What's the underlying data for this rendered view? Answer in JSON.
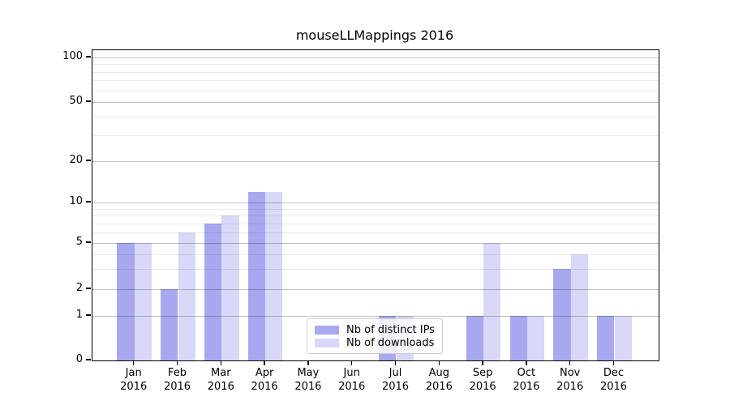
{
  "title": "mouseLLMappings 2016",
  "colors": {
    "distinct_ips": "#a8a8f0",
    "downloads": "#d8d8f8",
    "grid_major": "rgba(0,0,0,0.24)",
    "grid_minor": "rgba(0,0,0,0.09)",
    "axis": "#000000",
    "legend_border": "#cccccc"
  },
  "legend": {
    "items": [
      "Nb of distinct IPs",
      "Nb of downloads"
    ]
  },
  "chart_data": {
    "type": "bar",
    "title": "mouseLLMappings 2016",
    "x_months": [
      "Jan",
      "Feb",
      "Mar",
      "Apr",
      "May",
      "Jun",
      "Jul",
      "Aug",
      "Sep",
      "Oct",
      "Nov",
      "Dec"
    ],
    "x_year": "2016",
    "categories": [
      "Jan 2016",
      "Feb 2016",
      "Mar 2016",
      "Apr 2016",
      "May 2016",
      "Jun 2016",
      "Jul 2016",
      "Aug 2016",
      "Sep 2016",
      "Oct 2016",
      "Nov 2016",
      "Dec 2016"
    ],
    "series": [
      {
        "name": "Nb of distinct IPs",
        "color": "#a8a8f0",
        "values": [
          5,
          2,
          7,
          12,
          0,
          0,
          1,
          0,
          1,
          1,
          3,
          1
        ]
      },
      {
        "name": "Nb of downloads",
        "color": "#d8d8f8",
        "values": [
          5,
          6,
          8,
          12,
          0,
          0,
          1,
          0,
          5,
          1,
          4,
          1
        ]
      }
    ],
    "yscale": "log above 1, linear 0-1",
    "yticks_major": [
      0,
      1,
      2,
      5,
      10,
      20,
      50,
      100
    ],
    "yticks_minor": [
      3,
      4,
      6,
      7,
      8,
      9,
      30,
      40,
      60,
      70,
      80,
      90
    ],
    "ylim": [
      0,
      112
    ],
    "xlabel": "",
    "ylabel": "",
    "grid": true,
    "legend_position": "inside lower-center"
  }
}
